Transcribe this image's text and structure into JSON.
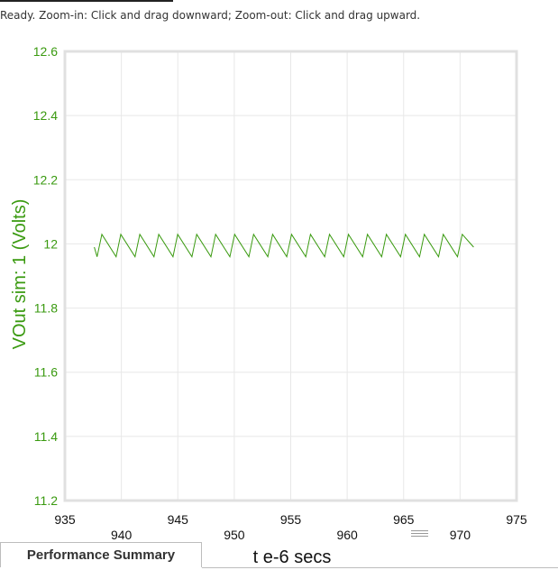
{
  "status": {
    "text": "Ready.  Zoom-in: Click and drag downward; Zoom-out: Click and drag upward."
  },
  "tabs": [
    {
      "label": "Performance Summary"
    }
  ],
  "colors": {
    "trace": "#3a9a10",
    "axis_text": "#3a9a10",
    "grid": "#e8e8e8",
    "frame": "#e0e0e0"
  },
  "chart_data": {
    "type": "line",
    "ylabel": "VOut sim:  1 (Volts)",
    "xlabel": "t e-6 secs",
    "xlim": [
      935,
      975
    ],
    "ylim": [
      11.2,
      12.6
    ],
    "x_ticks_upper": [
      "935",
      "945",
      "955",
      "965",
      "975"
    ],
    "x_ticks_lower": [
      "940",
      "950",
      "960",
      "970"
    ],
    "y_ticks": [
      "12.6",
      "12.4",
      "12.2",
      "12",
      "11.8",
      "11.6",
      "11.4",
      "11.2"
    ],
    "grid": true,
    "series": [
      {
        "waveform": "sawtooth ripple",
        "x_start": 937.6,
        "x_end": 971.2,
        "cycles": 20,
        "y_peak": 12.03,
        "y_trough": 11.96,
        "y_start": 11.99,
        "y_end": 11.99
      }
    ]
  }
}
